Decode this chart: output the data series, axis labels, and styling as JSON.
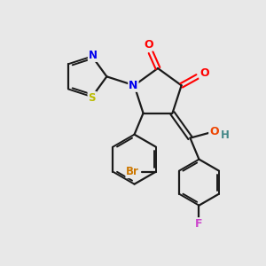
{
  "bg_color": "#e8e8e8",
  "bond_color": "#1a1a1a",
  "atom_colors": {
    "N": "#0000ee",
    "O": "#ff0000",
    "O_hydroxyl": "#ee4400",
    "S": "#bbbb00",
    "Br": "#cc7700",
    "F": "#cc44cc",
    "H": "#448888",
    "C": "#1a1a1a"
  },
  "figsize": [
    3.0,
    3.0
  ],
  "dpi": 100
}
